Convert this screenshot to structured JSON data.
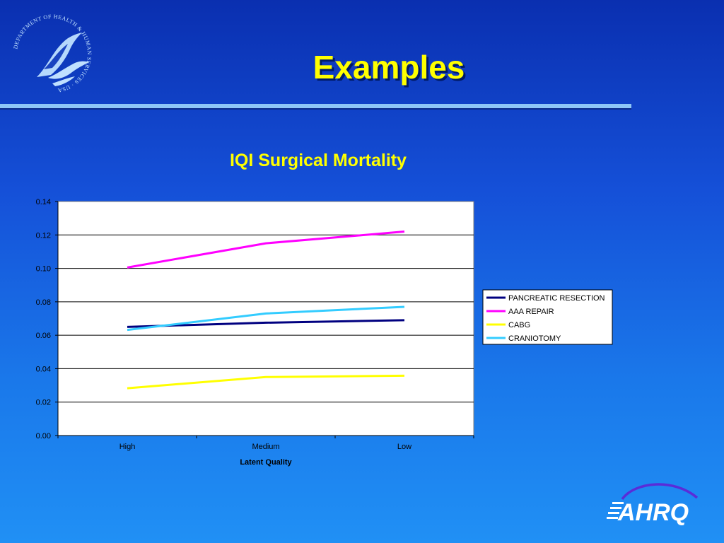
{
  "slide": {
    "title": "Examples"
  },
  "seal": {
    "text": "DEPARTMENT OF HEALTH & HUMAN SERVICES · USA"
  },
  "logo": {
    "text": "AHRQ"
  },
  "colors": {
    "title": "#ffff00",
    "plot_bg": "#ffffff"
  },
  "chart_data": {
    "type": "line",
    "title": "IQI Surgical Mortality",
    "xlabel": "Latent Quality",
    "ylabel": "",
    "categories": [
      "High",
      "Medium",
      "Low"
    ],
    "ylim": [
      0,
      0.14
    ],
    "yticks": [
      "0.00",
      "0.02",
      "0.04",
      "0.06",
      "0.08",
      "0.10",
      "0.12",
      "0.14"
    ],
    "grid": true,
    "legend_position": "right",
    "series": [
      {
        "name": "PANCREATIC RESECTION",
        "color": "#000080",
        "values": [
          0.065,
          0.0675,
          0.069
        ]
      },
      {
        "name": "AAA REPAIR",
        "color": "#ff00ff",
        "values": [
          0.1005,
          0.115,
          0.122
        ]
      },
      {
        "name": "CABG",
        "color": "#ffff00",
        "values": [
          0.0283,
          0.035,
          0.0358
        ]
      },
      {
        "name": "CRANIOTOMY",
        "color": "#33ccff",
        "values": [
          0.0632,
          0.073,
          0.077
        ]
      }
    ]
  }
}
